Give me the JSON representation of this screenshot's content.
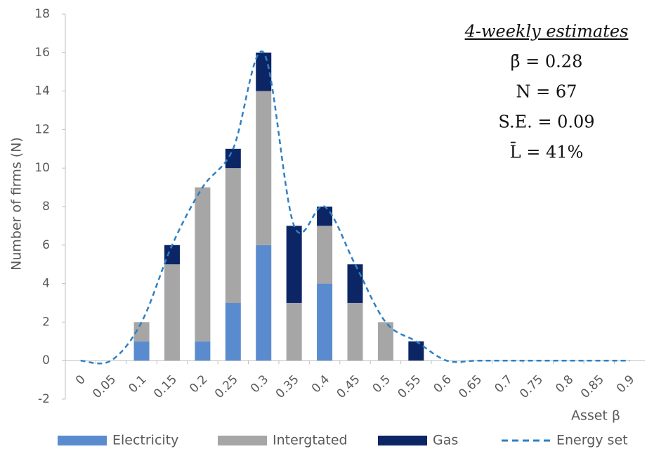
{
  "chart_data": {
    "type": "stacked_bar_line",
    "x_label": "Asset β",
    "y_label": "Number of firms (N)",
    "annotations": [
      "4-weekly estimates",
      "β̄ = 0.28",
      "N = 67",
      "S.E. = 0.09",
      "L̄ = 41%"
    ],
    "categories": [
      "0",
      "0.05",
      "0.1",
      "0.15",
      "0.2",
      "0.25",
      "0.3",
      "0.35",
      "0.4",
      "0.45",
      "0.5",
      "0.55",
      "0.6",
      "0.65",
      "0.7",
      "0.75",
      "0.8",
      "0.85",
      "0.9"
    ],
    "series": [
      {
        "name": "Electricity",
        "color": "#5b8bcf",
        "values": [
          0,
          0,
          1,
          0,
          1,
          3,
          6,
          0,
          4,
          0,
          0,
          0,
          0,
          0,
          0,
          0,
          0,
          0,
          0
        ]
      },
      {
        "name": "Intergtated",
        "color": "#a6a6a6",
        "values": [
          0,
          0,
          1,
          5,
          8,
          7,
          8,
          3,
          3,
          3,
          2,
          0,
          0,
          0,
          0,
          0,
          0,
          0,
          0
        ]
      },
      {
        "name": "Gas",
        "color": "#0b2565",
        "values": [
          0,
          0,
          0,
          1,
          0,
          1,
          2,
          4,
          1,
          2,
          0,
          1,
          0,
          0,
          0,
          0,
          0,
          0,
          0
        ]
      }
    ],
    "line": {
      "name": "Energy set",
      "color": "#2e80c4",
      "values": [
        0,
        0,
        2,
        6,
        9,
        11,
        16,
        7,
        8,
        5,
        2,
        1,
        0,
        0,
        0,
        0,
        0,
        0,
        0
      ]
    },
    "ylim": [
      -2,
      18
    ],
    "yticks": [
      -2,
      0,
      2,
      4,
      6,
      8,
      10,
      12,
      14,
      16,
      18
    ]
  }
}
